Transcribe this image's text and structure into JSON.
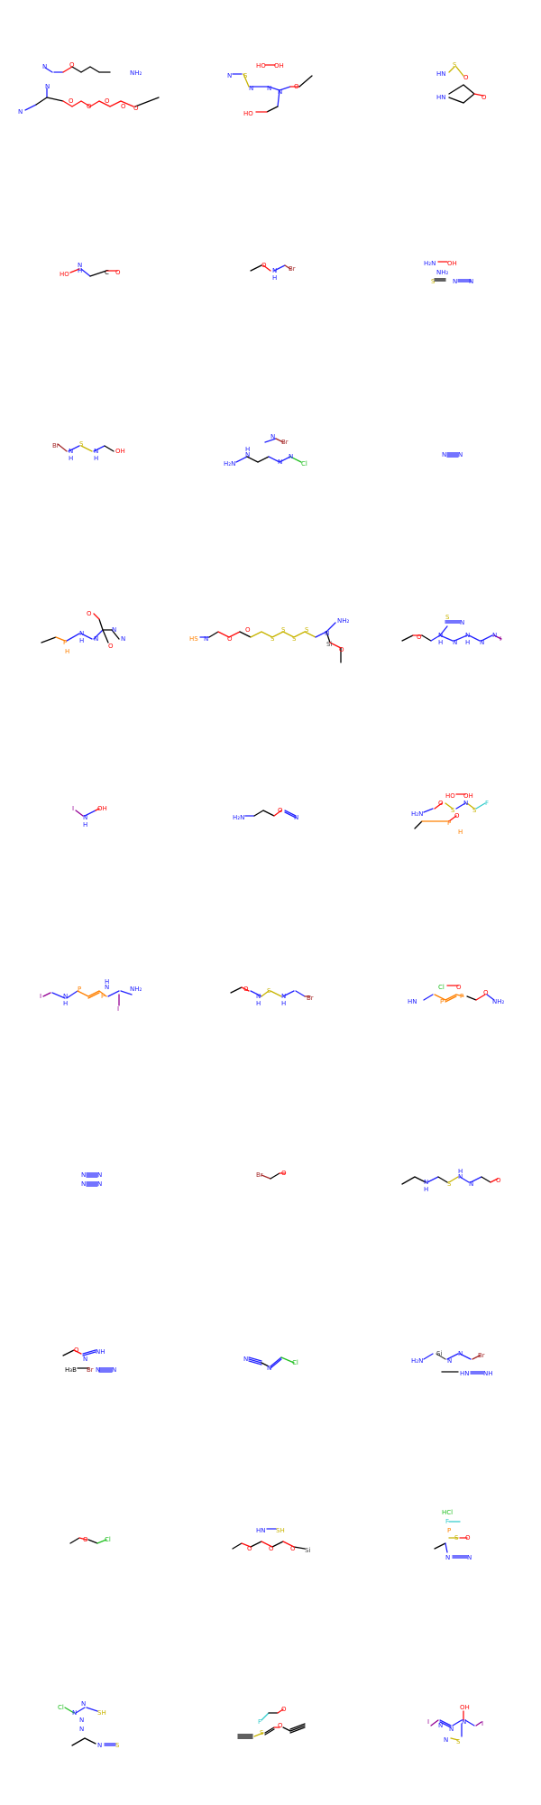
{
  "palette": {
    "carbon": "#000000",
    "nitrogen": "#2121ff",
    "oxygen": "#ff0d0d",
    "sulfur": "#c8b400",
    "phosphorus": "#ff8000",
    "bromine": "#a52a2a",
    "iodine": "#940094",
    "chlorine": "#1fbf1f",
    "fluorine": "#33cccc",
    "silicon": "#404040"
  },
  "molecules": [
    {
      "labels": [
        "N",
        "O",
        "NH₂",
        "N",
        "N",
        "O",
        "O",
        "O",
        "O",
        "O"
      ]
    },
    {
      "labels": [
        "HO",
        "OH",
        "N",
        "S",
        "N",
        "N",
        "N",
        "O",
        "HO"
      ]
    },
    {
      "labels": [
        "HN",
        "S",
        "O",
        "HN",
        "O"
      ]
    },
    {
      "labels": [
        "HO",
        "N",
        "H",
        "C",
        "O"
      ]
    },
    {
      "labels": [
        "O",
        "N",
        "H",
        "Br"
      ]
    },
    {
      "labels": [
        "H₂N",
        "OH",
        "NH₂",
        "S",
        "N",
        "N"
      ]
    },
    {
      "labels": [
        "Br",
        "N",
        "H",
        "S",
        "N",
        "H",
        "OH"
      ]
    },
    {
      "labels": [
        "N",
        "Br",
        "H₂N",
        "N",
        "H",
        "N",
        "N",
        "Cl"
      ]
    },
    {
      "labels": [
        "N",
        "N"
      ]
    },
    {
      "labels": [
        "P",
        "H",
        "N",
        "H",
        "N",
        "O",
        "N",
        "O",
        "N"
      ]
    },
    {
      "labels": [
        "HS",
        "N",
        "O",
        "O",
        "S",
        "S",
        "S",
        "S",
        "N",
        "NH₂",
        "Si",
        "O"
      ]
    },
    {
      "labels": [
        "O",
        "N",
        "H",
        "N",
        "N",
        "H",
        "N",
        "N",
        "I",
        "N",
        "S"
      ]
    },
    {
      "labels": [
        "I",
        "N",
        "H",
        "OH"
      ]
    },
    {
      "labels": [
        "H₂N",
        "O",
        "N"
      ]
    },
    {
      "labels": [
        "HO",
        "OH",
        "H₂N",
        "O",
        "S",
        "N",
        "S",
        "F",
        "P",
        "O",
        "H"
      ]
    },
    {
      "labels": [
        "I",
        "N",
        "H",
        "P",
        "P",
        "N",
        "H",
        "NH₂",
        "I"
      ]
    },
    {
      "labels": [
        "O",
        "N",
        "H",
        "S",
        "N",
        "H",
        "Br"
      ]
    },
    {
      "labels": [
        "Cl",
        "O",
        "HN",
        "P",
        "P",
        "O",
        "NH₂"
      ]
    },
    {
      "labels": [
        "N",
        "N",
        "N",
        "N"
      ]
    },
    {
      "labels": [
        "Br",
        "O"
      ]
    },
    {
      "labels": [
        "N",
        "H",
        "S",
        "N",
        "H",
        "N",
        "O"
      ]
    },
    {
      "labels": [
        "O",
        "N",
        "NH",
        "H₃B",
        "Br",
        "N",
        "N"
      ]
    },
    {
      "labels": [
        "N",
        "N",
        "Cl"
      ]
    },
    {
      "labels": [
        "H₂N",
        "Si",
        "N",
        "N",
        "Br",
        "HN",
        "NH"
      ]
    },
    {
      "labels": [
        "O",
        "Cl"
      ]
    },
    {
      "labels": [
        "HN",
        "SH",
        "O",
        "O",
        "O",
        "Si"
      ]
    },
    {
      "labels": [
        "HCl",
        "F",
        "P",
        "S",
        "O",
        "N",
        "N"
      ]
    },
    {
      "labels": [
        "Cl",
        "N",
        "N",
        "SH",
        "N",
        "N",
        "N",
        "S"
      ]
    },
    {
      "labels": [
        "F",
        "O",
        "S",
        "O"
      ]
    },
    {
      "labels": [
        "OH",
        "I",
        "N",
        "N",
        "N",
        "I",
        "N",
        "S"
      ]
    }
  ]
}
